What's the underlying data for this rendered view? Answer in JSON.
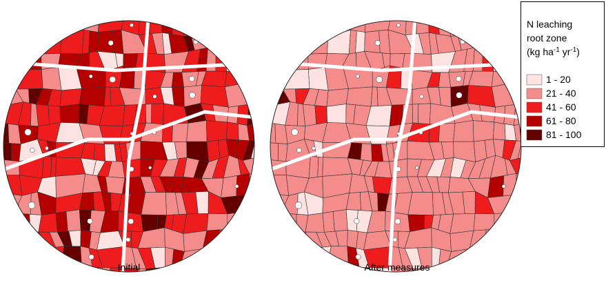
{
  "legend": {
    "title_lines": [
      "N leaching",
      "root zone"
    ],
    "unit": {
      "open": "(kg ha",
      "sup1": "-1",
      "mid": " yr",
      "sup2": "-1",
      "close": ")"
    },
    "items": [
      {
        "label": "1 - 20",
        "color": "#fde2e2"
      },
      {
        "label": "21 - 40",
        "color": "#f58c8c"
      },
      {
        "label": "41 - 60",
        "color": "#ee1c1c"
      },
      {
        "label": "61 - 80",
        "color": "#b50000"
      },
      {
        "label": "81 - 100",
        "color": "#650000"
      }
    ]
  },
  "maps": [
    {
      "label": "Initial"
    },
    {
      "label": "After measures"
    }
  ]
}
